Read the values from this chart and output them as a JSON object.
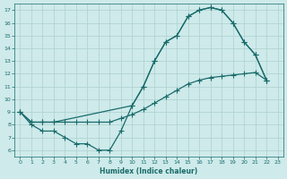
{
  "xlabel": "Humidex (Indice chaleur)",
  "background_color": "#ceeaea",
  "line_color": "#1a6b6b",
  "xlim": [
    -0.5,
    23.5
  ],
  "ylim": [
    5.5,
    17.5
  ],
  "xticks": [
    0,
    1,
    2,
    3,
    4,
    5,
    6,
    7,
    8,
    9,
    10,
    11,
    12,
    13,
    14,
    15,
    16,
    17,
    18,
    19,
    20,
    21,
    22,
    23
  ],
  "yticks": [
    6,
    7,
    8,
    9,
    10,
    11,
    12,
    13,
    14,
    15,
    16,
    17
  ],
  "grid_color": "#aed0d0",
  "font_color": "#1a6b6b",
  "curve_A_x": [
    0,
    1,
    2,
    3,
    4,
    5,
    6,
    7,
    8,
    9,
    10,
    11,
    12,
    13,
    14,
    15,
    16,
    17,
    18,
    19,
    20,
    21,
    22
  ],
  "curve_A_y": [
    9,
    8,
    7.5,
    7.5,
    7,
    6.5,
    6.5,
    6,
    6,
    7.5,
    9.5,
    11,
    13,
    14.5,
    15,
    16.5,
    17,
    17.2,
    17,
    16,
    14.5,
    13.5,
    11.5
  ],
  "curve_B_x": [
    0,
    1,
    2,
    3,
    4,
    5,
    6,
    7,
    8,
    9,
    10,
    11,
    12,
    13,
    14,
    15,
    16,
    17,
    18,
    19,
    20,
    21,
    22
  ],
  "curve_B_y": [
    9,
    8.2,
    8.2,
    8.2,
    8.2,
    8.2,
    8.2,
    8.2,
    8.2,
    8.5,
    8.8,
    9.2,
    9.7,
    10.2,
    10.7,
    11.2,
    11.5,
    11.7,
    11.8,
    11.9,
    12.0,
    12.1,
    11.5
  ],
  "curve_C_x": [
    0,
    1,
    2,
    3,
    10,
    11,
    12,
    13,
    14,
    15,
    16,
    17,
    18,
    19,
    20,
    21,
    22
  ],
  "curve_C_y": [
    9,
    8.2,
    8.2,
    8.2,
    9.5,
    11,
    13,
    14.5,
    15,
    16.5,
    17,
    17.2,
    17,
    16,
    14.5,
    13.5,
    11.5
  ]
}
